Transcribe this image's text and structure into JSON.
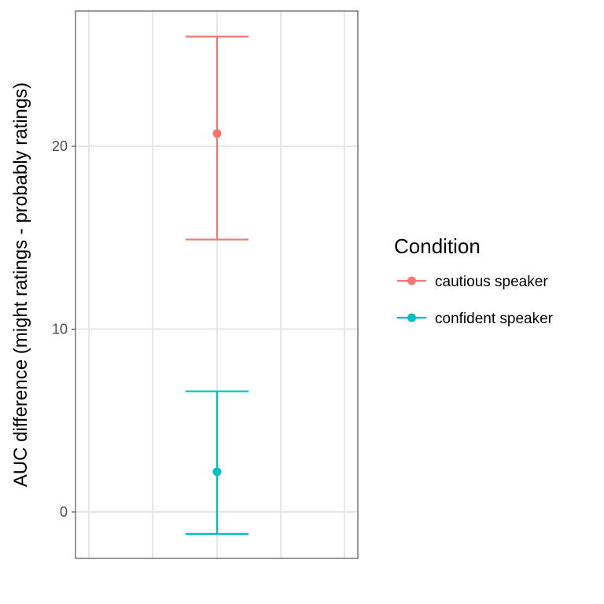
{
  "chart_data": {
    "type": "errorbar",
    "title": "",
    "xlabel": "",
    "ylabel": "AUC difference (might ratings - probably ratings)",
    "ylim": [
      -2.5,
      27.5
    ],
    "yticks": [
      0,
      10,
      20
    ],
    "grid": true,
    "legend": {
      "title": "Condition",
      "placement": "right"
    },
    "series": [
      {
        "name": "cautious speaker",
        "color": "#F8766D",
        "value": 20.7,
        "lower": 14.9,
        "upper": 26.0
      },
      {
        "name": "confident speaker",
        "color": "#00BFC4",
        "value": 2.2,
        "lower": -1.2,
        "upper": 6.6
      }
    ]
  }
}
